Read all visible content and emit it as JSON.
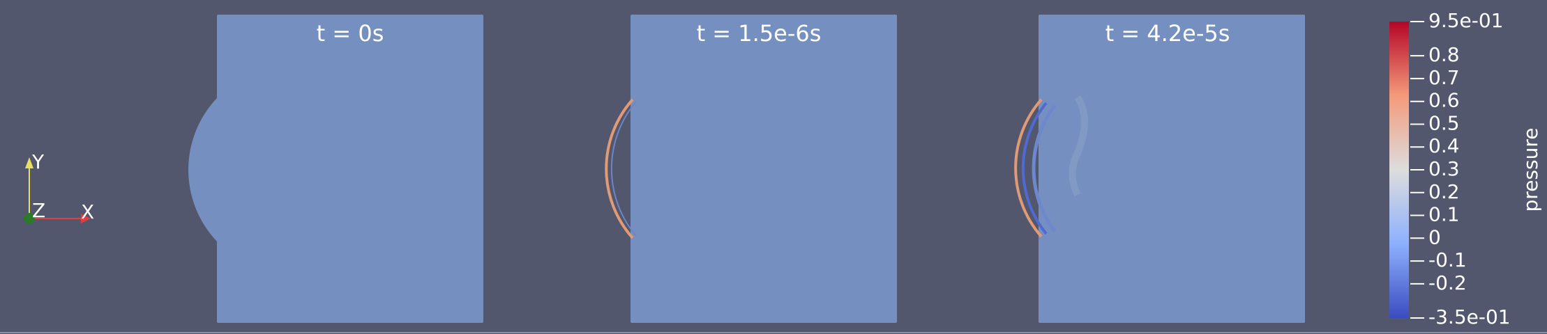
{
  "panels": [
    {
      "title": "t = 0s"
    },
    {
      "title": "t = 1.5e-6s"
    },
    {
      "title": "t = 4.2e-5s"
    }
  ],
  "axes": {
    "y": "Y",
    "z": "Z",
    "x": "X"
  },
  "colorbar": {
    "title": "pressure",
    "ticks": [
      {
        "value": 0.95,
        "label": "9.5e-01"
      },
      0.8,
      0.7,
      0.6,
      0.5,
      0.4,
      0.3,
      0.2,
      0.1,
      0,
      -0.1,
      -0.2,
      {
        "value": -0.35,
        "label": "-3.5e-01"
      }
    ]
  }
}
